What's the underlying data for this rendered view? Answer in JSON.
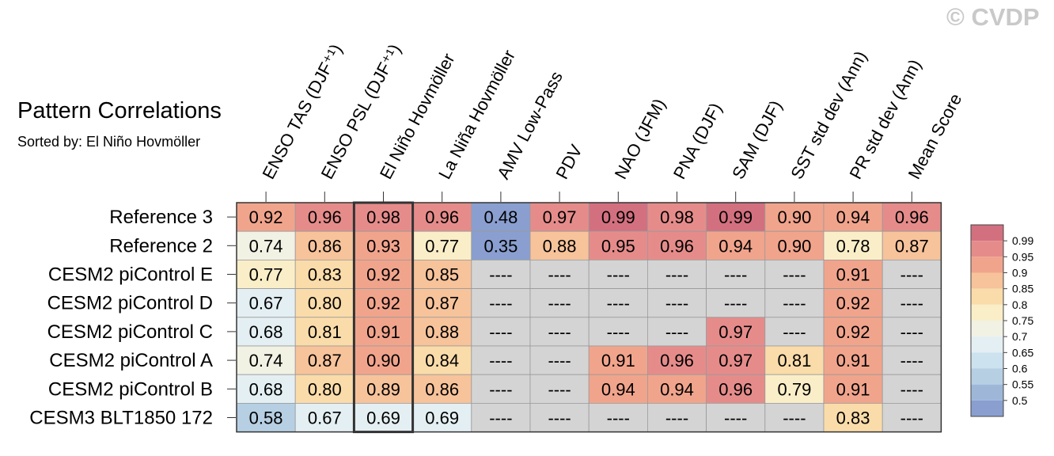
{
  "title": "Pattern Correlations",
  "subtitle": "Sorted by: El Niño Hovmöller",
  "watermark": "© CVDP",
  "chart_data": {
    "type": "heatmap",
    "title": "Pattern Correlations",
    "subtitle": "Sorted by: El Niño Hovmöller",
    "columns": [
      "ENSO TAS (DJF⁺¹)",
      "ENSO PSL (DJF⁺¹)",
      "El Niño Hovmöller",
      "La Niña Hovmöller",
      "AMV Low-Pass",
      "PDV",
      "NAO (JFM)",
      "PNA (DJF)",
      "SAM (DJF)",
      "SST std dev (Ann)",
      "PR std dev (Ann)",
      "Mean Score"
    ],
    "rows": [
      "Reference 3",
      "Reference 2",
      "CESM2 piControl E",
      "CESM2 piControl D",
      "CESM2 piControl C",
      "CESM2 piControl A",
      "CESM2 piControl B",
      "CESM3 BLT1850 172"
    ],
    "values": [
      [
        "0.92",
        "0.96",
        "0.98",
        "0.96",
        "0.48",
        "0.97",
        "0.99",
        "0.98",
        "0.99",
        "0.90",
        "0.94",
        "0.96"
      ],
      [
        "0.74",
        "0.86",
        "0.93",
        "0.77",
        "0.35",
        "0.88",
        "0.95",
        "0.96",
        "0.94",
        "0.90",
        "0.78",
        "0.87"
      ],
      [
        "0.77",
        "0.83",
        "0.92",
        "0.85",
        "----",
        "----",
        "----",
        "----",
        "----",
        "----",
        "0.91",
        "----"
      ],
      [
        "0.67",
        "0.80",
        "0.92",
        "0.87",
        "----",
        "----",
        "----",
        "----",
        "----",
        "----",
        "0.92",
        "----"
      ],
      [
        "0.68",
        "0.81",
        "0.91",
        "0.88",
        "----",
        "----",
        "----",
        "----",
        "0.97",
        "----",
        "0.92",
        "----"
      ],
      [
        "0.74",
        "0.87",
        "0.90",
        "0.84",
        "----",
        "----",
        "0.91",
        "0.96",
        "0.97",
        "0.81",
        "0.91",
        "----"
      ],
      [
        "0.68",
        "0.80",
        "0.89",
        "0.86",
        "----",
        "----",
        "0.94",
        "0.94",
        "0.96",
        "0.79",
        "0.91",
        "----"
      ],
      [
        "0.58",
        "0.67",
        "0.69",
        "0.69",
        "----",
        "----",
        "----",
        "----",
        "----",
        "----",
        "0.83",
        "----"
      ]
    ],
    "missing_label": "----",
    "missing_color": "#d4d4d4",
    "highlight_column": "El Niño Hovmöller",
    "colorbar": {
      "labels": [
        "0.99",
        "0.95",
        "0.9",
        "0.85",
        "0.8",
        "0.75",
        "0.7",
        "0.65",
        "0.6",
        "0.55",
        "0.5"
      ],
      "colors": [
        "#d3707f",
        "#e58c8b",
        "#f1a48c",
        "#f7c39b",
        "#fadcaa",
        "#faeec8",
        "#f1f1e4",
        "#e4eff3",
        "#cde2ef",
        "#b6cfe3",
        "#9eb7d9",
        "#8a9fd0"
      ],
      "placement": "right"
    }
  }
}
